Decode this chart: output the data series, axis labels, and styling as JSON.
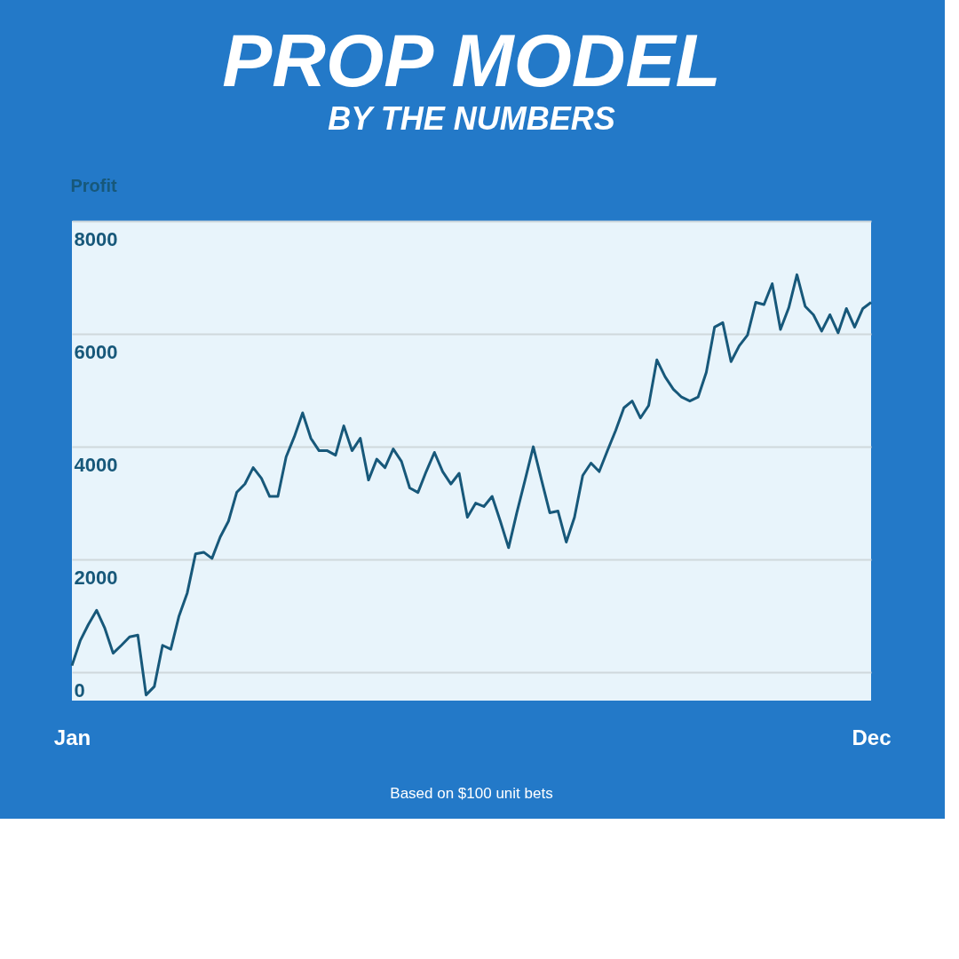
{
  "chart_data": {
    "type": "line",
    "title": "PROP MODEL",
    "subtitle": "BY THE NUMBERS",
    "ylabel": "Profit",
    "annotations": [
      "Based on $100 unit bets"
    ],
    "categories": [
      "Jan",
      null,
      null,
      null,
      null,
      null,
      null,
      null,
      null,
      null,
      null,
      null,
      null,
      null,
      null,
      null,
      null,
      null,
      null,
      null,
      null,
      null,
      null,
      null,
      null,
      null,
      null,
      null,
      null,
      null,
      null,
      null,
      null,
      null,
      null,
      null,
      null,
      null,
      null,
      null,
      null,
      null,
      null,
      null,
      null,
      null,
      null,
      null,
      null,
      null,
      null,
      null,
      null,
      null,
      null,
      null,
      null,
      null,
      null,
      null,
      null,
      null,
      null,
      null,
      null,
      null,
      null,
      null,
      null,
      null,
      null,
      null,
      null,
      null,
      null,
      null,
      null,
      null,
      null,
      null,
      null,
      null,
      null,
      null,
      null,
      null,
      null,
      null,
      null,
      null,
      null,
      null,
      null,
      null,
      null,
      null,
      null,
      "Dec"
    ],
    "values": [
      120,
      560,
      850,
      1100,
      780,
      340,
      480,
      630,
      660,
      -400,
      -250,
      480,
      410,
      1000,
      1410,
      2100,
      2130,
      2020,
      2400,
      2680,
      3190,
      3340,
      3630,
      3440,
      3120,
      3120,
      3820,
      4180,
      4600,
      4150,
      3930,
      3930,
      3850,
      4370,
      3930,
      4150,
      3410,
      3780,
      3630,
      3960,
      3740,
      3270,
      3190,
      3560,
      3900,
      3560,
      3340,
      3530,
      2750,
      3000,
      2940,
      3120,
      2680,
      2210,
      2830,
      3410,
      4000,
      3410,
      2830,
      2860,
      2310,
      2750,
      3490,
      3710,
      3560,
      3930,
      4290,
      4690,
      4810,
      4510,
      4730,
      5540,
      5240,
      5020,
      4880,
      4810,
      4880,
      5320,
      6120,
      6200,
      5510,
      5790,
      5980,
      6560,
      6520,
      6890,
      6080,
      6460,
      7050,
      6490,
      6340,
      6050,
      6340,
      6020,
      6450,
      6120,
      6450,
      6560
    ],
    "color": "#17587a",
    "line_style": "solid",
    "marker": "none",
    "ylim": [
      -500,
      8000
    ],
    "yticks": [
      0,
      2000,
      4000,
      6000,
      8000
    ],
    "grid": "y"
  }
}
